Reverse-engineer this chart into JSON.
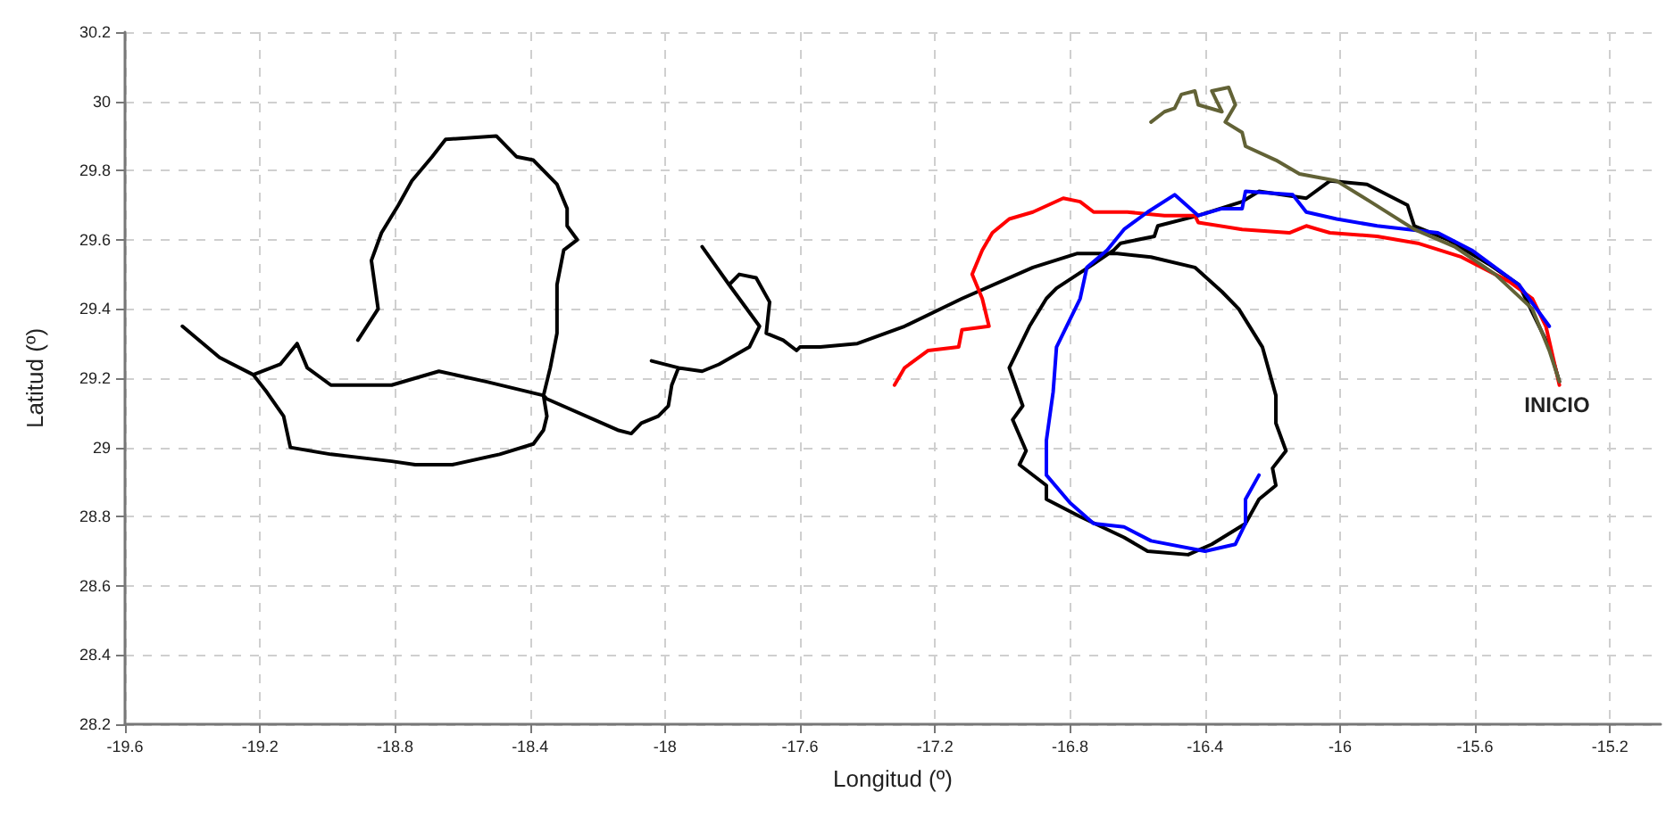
{
  "chart_data": {
    "type": "line",
    "xlabel": "Longitud (º)",
    "ylabel": "Latitud (º)",
    "xlim": [
      -19.6,
      -15.05
    ],
    "ylim": [
      28.2,
      30.2
    ],
    "xticks": [
      -19.6,
      -19.2,
      -18.8,
      -18.4,
      -18,
      -17.6,
      -17.2,
      -16.8,
      -16.4,
      -16,
      -15.6,
      -15.2
    ],
    "yticks": [
      28.2,
      28.4,
      28.6,
      28.8,
      29,
      29.2,
      29.4,
      29.6,
      29.8,
      30,
      30.2
    ],
    "grid": true,
    "marker": "none",
    "line_style": "solid",
    "annotations": [
      "INICIO"
    ],
    "series": [
      {
        "color": "#000000",
        "x": [
          -15.35,
          -15.38,
          -15.45,
          -15.47,
          -15.56,
          -15.68,
          -15.78,
          -15.8,
          -15.92,
          -16.03,
          -16.1,
          -16.24,
          -16.29,
          -16.42,
          -16.54,
          -16.55,
          -16.65,
          -16.67,
          -16.73,
          -16.84,
          -16.87,
          -16.92,
          -16.98,
          -16.94,
          -16.97,
          -16.93,
          -16.95,
          -16.87,
          -16.87,
          -16.77,
          -16.64,
          -16.57,
          -16.45,
          -16.38,
          -16.28,
          -16.24,
          -16.19,
          -16.2,
          -16.16,
          -16.19,
          -16.19,
          -16.23,
          -16.3,
          -16.35,
          -16.43,
          -16.56,
          -16.66,
          -16.78,
          -16.91,
          -17.12,
          -17.29,
          -17.43,
          -17.54,
          -17.6,
          -17.61,
          -17.65,
          -17.7,
          -17.69,
          -17.73,
          -17.78,
          -17.81,
          -17.89,
          -17.81,
          -17.72,
          -17.75,
          -17.84,
          -17.89,
          -17.96,
          -18.04,
          -17.96,
          -17.98,
          -17.99,
          -18.02,
          -18.07,
          -18.1,
          -18.14,
          -18.35,
          -18.36,
          -18.35,
          -18.36,
          -18.39,
          -18.49,
          -18.63,
          -18.74,
          -18.81,
          -18.99,
          -19.11,
          -19.13,
          -19.18,
          -19.22,
          -19.32,
          -19.43,
          -19.32,
          -19.22,
          -19.14,
          -19.09,
          -19.06,
          -18.99,
          -18.81,
          -18.67,
          -18.53,
          -18.36,
          -18.34,
          -18.32,
          -18.32,
          -18.3,
          -18.26,
          -18.29,
          -18.29,
          -18.32,
          -18.39,
          -18.44,
          -18.5,
          -18.65,
          -18.69,
          -18.75,
          -18.79,
          -18.84,
          -18.87,
          -18.85,
          -18.91
        ],
        "values": [
          29.19,
          29.29,
          29.43,
          29.47,
          29.53,
          29.6,
          29.64,
          29.7,
          29.76,
          29.77,
          29.72,
          29.74,
          29.71,
          29.67,
          29.64,
          29.61,
          29.59,
          29.57,
          29.53,
          29.46,
          29.43,
          29.35,
          29.23,
          29.12,
          29.08,
          28.99,
          28.95,
          28.89,
          28.85,
          28.8,
          28.74,
          28.7,
          28.69,
          28.72,
          28.78,
          28.85,
          28.89,
          28.94,
          28.99,
          29.07,
          29.15,
          29.29,
          29.4,
          29.45,
          29.52,
          29.55,
          29.56,
          29.56,
          29.52,
          29.43,
          29.35,
          29.3,
          29.29,
          29.29,
          29.28,
          29.31,
          29.33,
          29.42,
          29.49,
          29.5,
          29.47,
          29.58,
          29.47,
          29.35,
          29.29,
          29.24,
          29.22,
          29.23,
          29.25,
          29.23,
          29.18,
          29.12,
          29.09,
          29.07,
          29.04,
          29.05,
          29.14,
          29.15,
          29.09,
          29.05,
          29.01,
          28.98,
          28.95,
          28.95,
          28.96,
          28.98,
          29,
          29.09,
          29.16,
          29.21,
          29.26,
          29.35,
          29.26,
          29.21,
          29.24,
          29.3,
          29.23,
          29.18,
          29.18,
          29.22,
          29.19,
          29.15,
          29.23,
          29.33,
          29.47,
          29.57,
          29.6,
          29.64,
          29.69,
          29.76,
          29.83,
          29.84,
          29.9,
          29.89,
          29.84,
          29.77,
          29.7,
          29.62,
          29.54,
          29.4,
          29.31
        ]
      },
      {
        "color": "#ff0000",
        "x": [
          -15.35,
          -15.39,
          -15.43,
          -15.5,
          -15.64,
          -15.77,
          -15.89,
          -16.03,
          -16.1,
          -16.15,
          -16.29,
          -16.42,
          -16.43,
          -16.52,
          -16.63,
          -16.73,
          -16.77,
          -16.82,
          -16.91,
          -16.98,
          -17.03,
          -17.06,
          -17.09,
          -17.06,
          -17.04,
          -17.12,
          -17.13,
          -17.22,
          -17.29,
          -17.32
        ],
        "values": [
          29.18,
          29.35,
          29.43,
          29.48,
          29.55,
          29.59,
          29.61,
          29.62,
          29.64,
          29.62,
          29.63,
          29.65,
          29.67,
          29.67,
          29.68,
          29.68,
          29.71,
          29.72,
          29.68,
          29.66,
          29.62,
          29.57,
          29.5,
          29.43,
          29.35,
          29.34,
          29.29,
          29.28,
          29.23,
          29.18
        ]
      },
      {
        "color": "#0000ff",
        "x": [
          -15.38,
          -15.47,
          -15.61,
          -15.71,
          -15.89,
          -16.01,
          -16.1,
          -16.14,
          -16.28,
          -16.29,
          -16.35,
          -16.42,
          -16.49,
          -16.57,
          -16.64,
          -16.69,
          -16.75,
          -16.77,
          -16.81,
          -16.84,
          -16.85,
          -16.87,
          -16.87,
          -16.8,
          -16.73,
          -16.64,
          -16.56,
          -16.4,
          -16.31,
          -16.28,
          -16.28,
          -16.24
        ],
        "values": [
          29.35,
          29.47,
          29.57,
          29.62,
          29.64,
          29.66,
          29.68,
          29.73,
          29.74,
          29.69,
          29.69,
          29.67,
          29.73,
          29.68,
          29.63,
          29.57,
          29.52,
          29.43,
          29.35,
          29.29,
          29.16,
          29.02,
          28.92,
          28.84,
          28.78,
          28.77,
          28.73,
          28.7,
          28.72,
          28.78,
          28.85,
          28.92
        ]
      },
      {
        "color": "#626236",
        "x": [
          -15.35,
          -15.38,
          -15.43,
          -15.54,
          -15.66,
          -15.78,
          -15.91,
          -16.01,
          -16.12,
          -16.19,
          -16.28,
          -16.29,
          -16.34,
          -16.31,
          -16.33,
          -16.38,
          -16.35,
          -16.42,
          -16.43,
          -16.47,
          -16.49,
          -16.52,
          -16.56
        ],
        "values": [
          29.19,
          29.28,
          29.4,
          29.5,
          29.58,
          29.63,
          29.71,
          29.77,
          29.79,
          29.83,
          29.87,
          29.91,
          29.94,
          29.99,
          30.04,
          30.03,
          29.97,
          29.99,
          30.03,
          30.02,
          29.98,
          29.97,
          29.94
        ]
      }
    ]
  }
}
